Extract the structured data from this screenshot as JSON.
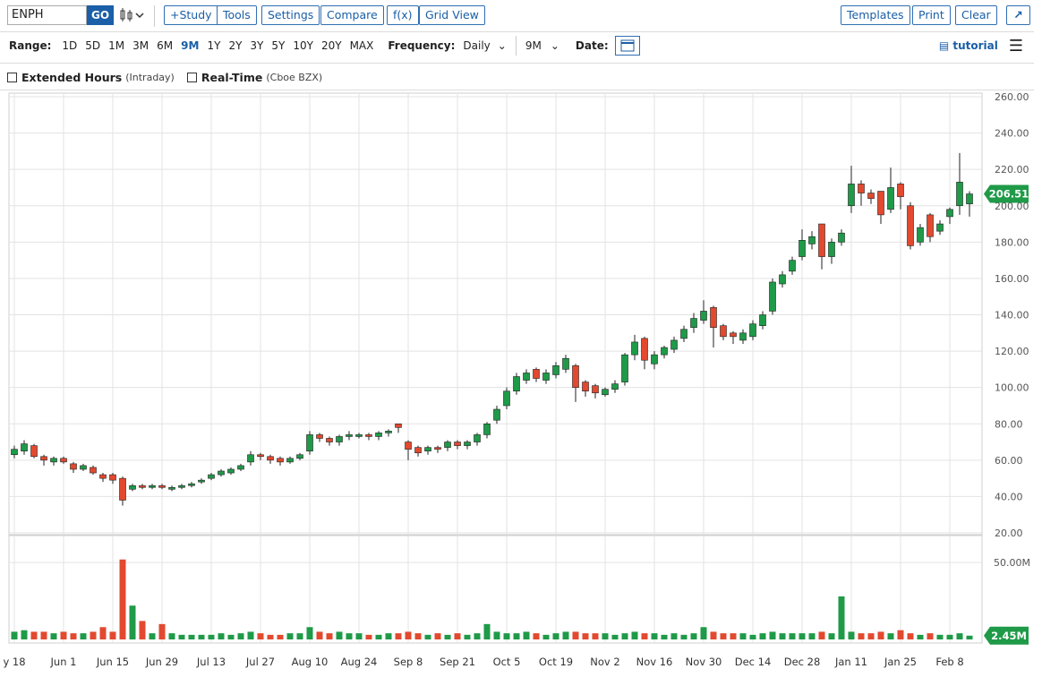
{
  "toolbar": {
    "symbol": "ENPH",
    "go": "GO",
    "buttons": [
      "+Study",
      "Tools",
      "Settings",
      "Compare",
      "f(x)",
      "Grid View"
    ],
    "right_buttons": [
      "Templates",
      "Print",
      "Clear"
    ]
  },
  "controls": {
    "range_label": "Range:",
    "ranges": [
      "1D",
      "5D",
      "1M",
      "3M",
      "6M",
      "9M",
      "1Y",
      "2Y",
      "3Y",
      "5Y",
      "10Y",
      "20Y",
      "MAX"
    ],
    "active_range": 5,
    "frequency_label": "Frequency:",
    "frequency": "Daily",
    "period": "9M",
    "date_label": "Date:",
    "tutorial": "tutorial"
  },
  "options": [
    {
      "label": "Extended Hours",
      "note": "(Intraday)"
    },
    {
      "label": "Real-Time",
      "note": "(Cboe BZX)"
    }
  ],
  "chart_data": {
    "type": "candlestick",
    "categories": [
      "y 18",
      null,
      null,
      null,
      null,
      "Jun 1",
      null,
      null,
      null,
      null,
      "Jun 15",
      null,
      null,
      null,
      null,
      "Jun 29",
      null,
      null,
      null,
      null,
      "Jul 13",
      null,
      null,
      null,
      null,
      "Jul 27",
      null,
      null,
      null,
      null,
      "Aug 10",
      null,
      null,
      null,
      null,
      "Aug 24",
      null,
      null,
      null,
      null,
      "Sep 8",
      null,
      null,
      null,
      null,
      "Sep 21",
      null,
      null,
      null,
      null,
      "Oct 5",
      null,
      null,
      null,
      null,
      "Oct 19",
      null,
      null,
      null,
      null,
      "Nov 2",
      null,
      null,
      null,
      null,
      "Nov 16",
      null,
      null,
      null,
      null,
      "Nov 30",
      null,
      null,
      null,
      null,
      "Dec 14",
      null,
      null,
      null,
      null,
      "Dec 28",
      null,
      null,
      null,
      null,
      "Jan 11",
      null,
      null,
      null,
      null,
      "Jan 25",
      null,
      null,
      null,
      null,
      "Feb 8",
      null,
      null
    ],
    "open": [
      63,
      65,
      68,
      62,
      59,
      61,
      58,
      55,
      56,
      52,
      52,
      50,
      44,
      46,
      45,
      46,
      44,
      45,
      46,
      48,
      50,
      52,
      53,
      55,
      59,
      63,
      62,
      61,
      59,
      61,
      65,
      74,
      72,
      70,
      73,
      73,
      74,
      73,
      75,
      80,
      70,
      67,
      65,
      67,
      67,
      70,
      68,
      70,
      74,
      82,
      90,
      98,
      104,
      110,
      104,
      107,
      110,
      112,
      103,
      101,
      96,
      99,
      103,
      118,
      127,
      113,
      118,
      121,
      127,
      133,
      137,
      144,
      134,
      130,
      126,
      128,
      134,
      142,
      157,
      164,
      172,
      179,
      190,
      172,
      180,
      200,
      212,
      207,
      208,
      198,
      212,
      200,
      180,
      195,
      186,
      194,
      200,
      201
    ],
    "high": [
      68,
      71,
      69,
      63,
      62,
      62,
      59,
      58,
      57,
      53,
      53,
      51,
      47,
      47,
      47,
      47,
      46,
      47,
      48,
      50,
      53,
      55,
      56,
      58,
      65,
      64,
      63,
      62,
      62,
      64,
      76,
      75,
      73,
      74,
      76,
      75,
      75,
      76,
      77,
      80,
      71,
      68,
      68,
      68,
      71,
      71,
      71,
      75,
      81,
      90,
      100,
      108,
      110,
      111,
      110,
      114,
      118,
      113,
      104,
      102,
      100,
      104,
      119,
      129,
      128,
      120,
      123,
      128,
      134,
      141,
      148,
      145,
      135,
      131,
      132,
      137,
      142,
      160,
      164,
      172,
      187,
      186,
      190,
      182,
      187,
      222,
      214,
      209,
      208,
      221,
      213,
      202,
      190,
      196,
      192,
      199,
      229,
      208
    ],
    "low": [
      61,
      63,
      61,
      57,
      57,
      58,
      53,
      54,
      52,
      48,
      47,
      35,
      43,
      44,
      44,
      44,
      43,
      44,
      45,
      47,
      49,
      51,
      52,
      54,
      57,
      60,
      58,
      57,
      58,
      60,
      63,
      70,
      68,
      68,
      71,
      72,
      71,
      71,
      73,
      75,
      60,
      62,
      63,
      64,
      65,
      66,
      66,
      68,
      72,
      80,
      88,
      96,
      102,
      103,
      102,
      105,
      108,
      92,
      95,
      94,
      95,
      97,
      101,
      115,
      110,
      110,
      116,
      119,
      125,
      130,
      135,
      122,
      126,
      124,
      124,
      126,
      132,
      140,
      155,
      162,
      170,
      176,
      165,
      168,
      178,
      196,
      200,
      201,
      190,
      196,
      198,
      176,
      178,
      180,
      184,
      190,
      195,
      194
    ],
    "close": [
      66,
      69,
      62,
      60,
      61,
      59,
      55,
      57,
      53,
      50,
      49,
      38,
      46,
      45,
      46,
      45,
      45,
      46,
      47,
      49,
      52,
      54,
      55,
      57,
      63,
      62,
      60,
      59,
      61,
      63,
      74,
      72,
      70,
      73,
      74,
      74,
      73,
      75,
      76,
      78,
      66,
      64,
      67,
      66,
      70,
      68,
      70,
      74,
      80,
      88,
      98,
      106,
      108,
      105,
      108,
      112,
      116,
      100,
      98,
      97,
      99,
      102,
      118,
      125,
      115,
      118,
      122,
      126,
      132,
      138,
      142,
      133,
      128,
      128,
      130,
      135,
      140,
      158,
      162,
      170,
      181,
      183,
      172,
      180,
      185,
      212,
      207,
      204,
      195,
      210,
      205,
      178,
      188,
      183,
      190,
      198,
      213,
      206.51
    ],
    "volume": [
      5,
      6,
      5,
      5,
      4,
      5,
      4,
      4,
      5,
      8,
      5,
      52,
      22,
      12,
      4,
      10,
      4,
      3,
      3,
      3,
      3,
      4,
      3,
      4,
      5,
      4,
      3,
      3,
      4,
      4,
      8,
      5,
      4,
      5,
      4,
      4,
      3,
      3,
      4,
      4,
      5,
      4,
      3,
      4,
      3,
      4,
      3,
      4,
      10,
      5,
      4,
      4,
      5,
      4,
      3,
      4,
      5,
      5,
      4,
      4,
      4,
      3,
      4,
      5,
      4,
      4,
      3,
      4,
      3,
      4,
      8,
      5,
      4,
      4,
      4,
      3,
      4,
      5,
      4,
      4,
      4,
      4,
      5,
      4,
      28,
      5,
      4,
      4,
      5,
      4,
      6,
      4,
      3,
      4,
      3,
      3,
      4,
      2.45
    ],
    "up_color": "#1f9a48",
    "down_color": "#e2492f",
    "ylim": [
      20,
      260
    ],
    "yticks": [
      {
        "value": 20,
        "label": "20.00"
      },
      {
        "value": 40,
        "label": "40.00"
      },
      {
        "value": 60,
        "label": "60.00"
      },
      {
        "value": 80,
        "label": "80.00"
      },
      {
        "value": 100,
        "label": "100.00"
      },
      {
        "value": 120,
        "label": "120.00"
      },
      {
        "value": 140,
        "label": "140.00"
      },
      {
        "value": 160,
        "label": "160.00"
      },
      {
        "value": 180,
        "label": "180.00"
      },
      {
        "value": 200,
        "label": "200.00"
      },
      {
        "value": 220,
        "label": "220.00"
      },
      {
        "value": 240,
        "label": "240.00"
      },
      {
        "value": 260,
        "label": "260.00"
      }
    ],
    "volume_lim": [
      0,
      60
    ],
    "volume_ticks": [
      {
        "value": 50,
        "label": "50.00M"
      }
    ],
    "last_price": {
      "value": 206.51,
      "label": "206.51"
    },
    "last_volume": {
      "value": 2.45,
      "label": "2.45M"
    },
    "grid": true
  }
}
